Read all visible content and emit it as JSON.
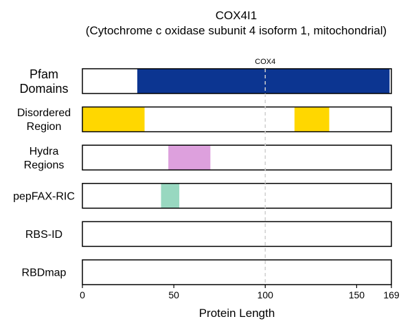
{
  "chart_data": {
    "type": "bar",
    "title": "COX4I1",
    "subtitle": "(Cytochrome c oxidase subunit 4 isoform 1, mitochondrial)",
    "xlabel": "Protein Length",
    "xlim": [
      0,
      169
    ],
    "xticks": [
      0,
      50,
      100,
      150,
      169
    ],
    "grid": false,
    "reference_line": {
      "x": 100,
      "label": "COX4"
    },
    "tracks": [
      {
        "label_lines": [
          "Pfam",
          "Domains"
        ],
        "segments": [
          {
            "name": "COX4",
            "start": 30,
            "end": 168,
            "color": "#0c3591"
          }
        ]
      },
      {
        "label_lines": [
          "Disordered",
          "Region"
        ],
        "segments": [
          {
            "start": 0,
            "end": 34,
            "color": "#ffd700"
          },
          {
            "start": 116,
            "end": 135,
            "color": "#ffd700"
          }
        ]
      },
      {
        "label_lines": [
          "Hydra",
          "Regions"
        ],
        "segments": [
          {
            "start": 47,
            "end": 70,
            "color": "#dda0dd"
          }
        ]
      },
      {
        "label_lines": [
          "pepFAX-RIC"
        ],
        "segments": [
          {
            "start": 43,
            "end": 53,
            "color": "#98d8c0"
          }
        ]
      },
      {
        "label_lines": [
          "RBS-ID"
        ],
        "segments": []
      },
      {
        "label_lines": [
          "RBDmap"
        ],
        "segments": []
      }
    ]
  }
}
